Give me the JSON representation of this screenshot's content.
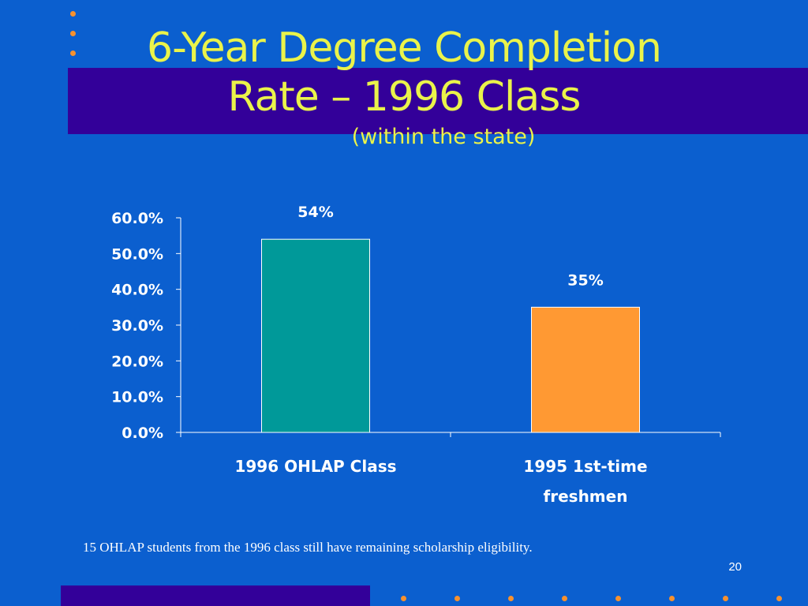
{
  "slide": {
    "title_line1": "6-Year Degree Completion",
    "title_line2": "Rate – 1996 Class",
    "subtitle": "(within the state)",
    "footnote": "15 OHLAP students from the 1996 class still have remaining scholarship eligibility.",
    "page_number": "20"
  },
  "colors": {
    "background": "#0b5fcf",
    "band": "#330099",
    "title": "#eaf34a",
    "dot": "#f7912e"
  },
  "chart_data": {
    "type": "bar",
    "title": "",
    "xlabel": "",
    "ylabel": "",
    "categories": [
      [
        "1996 OHLAP Class"
      ],
      [
        "1995 1st-time",
        "freshmen"
      ]
    ],
    "values": [
      0.54,
      0.35
    ],
    "data_labels": [
      "54%",
      "35%"
    ],
    "bar_colors": [
      "#009999",
      "#ff9933"
    ],
    "ylim": [
      0,
      0.6
    ],
    "yticks": [
      0,
      0.1,
      0.2,
      0.3,
      0.4,
      0.5,
      0.6
    ],
    "ytick_labels": [
      "0.0%",
      "10.0%",
      "20.0%",
      "30.0%",
      "40.0%",
      "50.0%",
      "60.0%"
    ],
    "grid": false,
    "legend": "none"
  }
}
